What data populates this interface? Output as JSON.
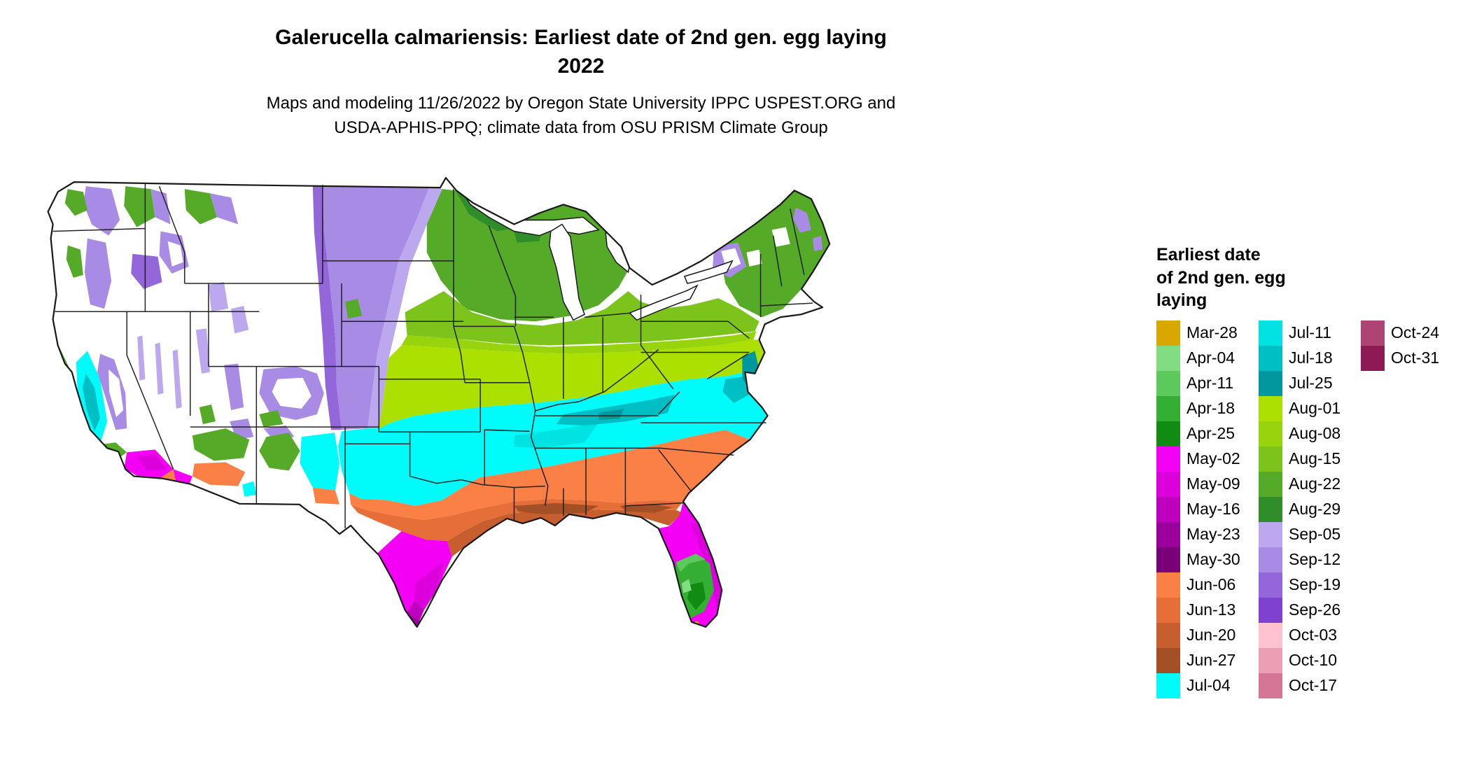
{
  "title": {
    "line1": "Galerucella calmariensis: Earliest date of 2nd gen. egg laying",
    "line2": "2022"
  },
  "subtitle": {
    "line1": "Maps and modeling 11/26/2022 by Oregon State University IPPC USPEST.ORG and",
    "line2": "USDA-APHIS-PPQ; climate data from OSU PRISM Climate Group"
  },
  "legend": {
    "title_lines": [
      "Earliest date",
      "of 2nd gen. egg",
      "laying"
    ],
    "columns": [
      15,
      15,
      2
    ],
    "entries": [
      {
        "label": "Mar-28",
        "color": "#D9A800"
      },
      {
        "label": "Apr-04",
        "color": "#82DC82"
      },
      {
        "label": "Apr-11",
        "color": "#5BC95B"
      },
      {
        "label": "Apr-18",
        "color": "#34AF34"
      },
      {
        "label": "Apr-25",
        "color": "#118B11"
      },
      {
        "label": "May-02",
        "color": "#F400F4"
      },
      {
        "label": "May-09",
        "color": "#DC00DC"
      },
      {
        "label": "May-16",
        "color": "#BE00BE"
      },
      {
        "label": "May-23",
        "color": "#9C009C"
      },
      {
        "label": "May-30",
        "color": "#7A007A"
      },
      {
        "label": "Jun-06",
        "color": "#FA8046"
      },
      {
        "label": "Jun-13",
        "color": "#E66E38"
      },
      {
        "label": "Jun-20",
        "color": "#C75E2D"
      },
      {
        "label": "Jun-27",
        "color": "#A35026"
      },
      {
        "label": "Jul-04",
        "color": "#00FBFB"
      },
      {
        "label": "Jul-11",
        "color": "#00E3E3"
      },
      {
        "label": "Jul-18",
        "color": "#00BFC4"
      },
      {
        "label": "Jul-25",
        "color": "#00989F"
      },
      {
        "label": "Aug-01",
        "color": "#ABE000"
      },
      {
        "label": "Aug-08",
        "color": "#97D40E"
      },
      {
        "label": "Aug-15",
        "color": "#7CC41C"
      },
      {
        "label": "Aug-22",
        "color": "#55AB28"
      },
      {
        "label": "Aug-29",
        "color": "#2F8D2A"
      },
      {
        "label": "Sep-05",
        "color": "#BCA8EE"
      },
      {
        "label": "Sep-12",
        "color": "#A78BE4"
      },
      {
        "label": "Sep-19",
        "color": "#9367DA"
      },
      {
        "label": "Sep-26",
        "color": "#7F42D0"
      },
      {
        "label": "Oct-03",
        "color": "#FFC3CF"
      },
      {
        "label": "Oct-10",
        "color": "#EC9FB4"
      },
      {
        "label": "Oct-17",
        "color": "#D67697"
      },
      {
        "label": "Oct-24",
        "color": "#AE4473"
      },
      {
        "label": "Oct-31",
        "color": "#8E1A55"
      }
    ]
  }
}
